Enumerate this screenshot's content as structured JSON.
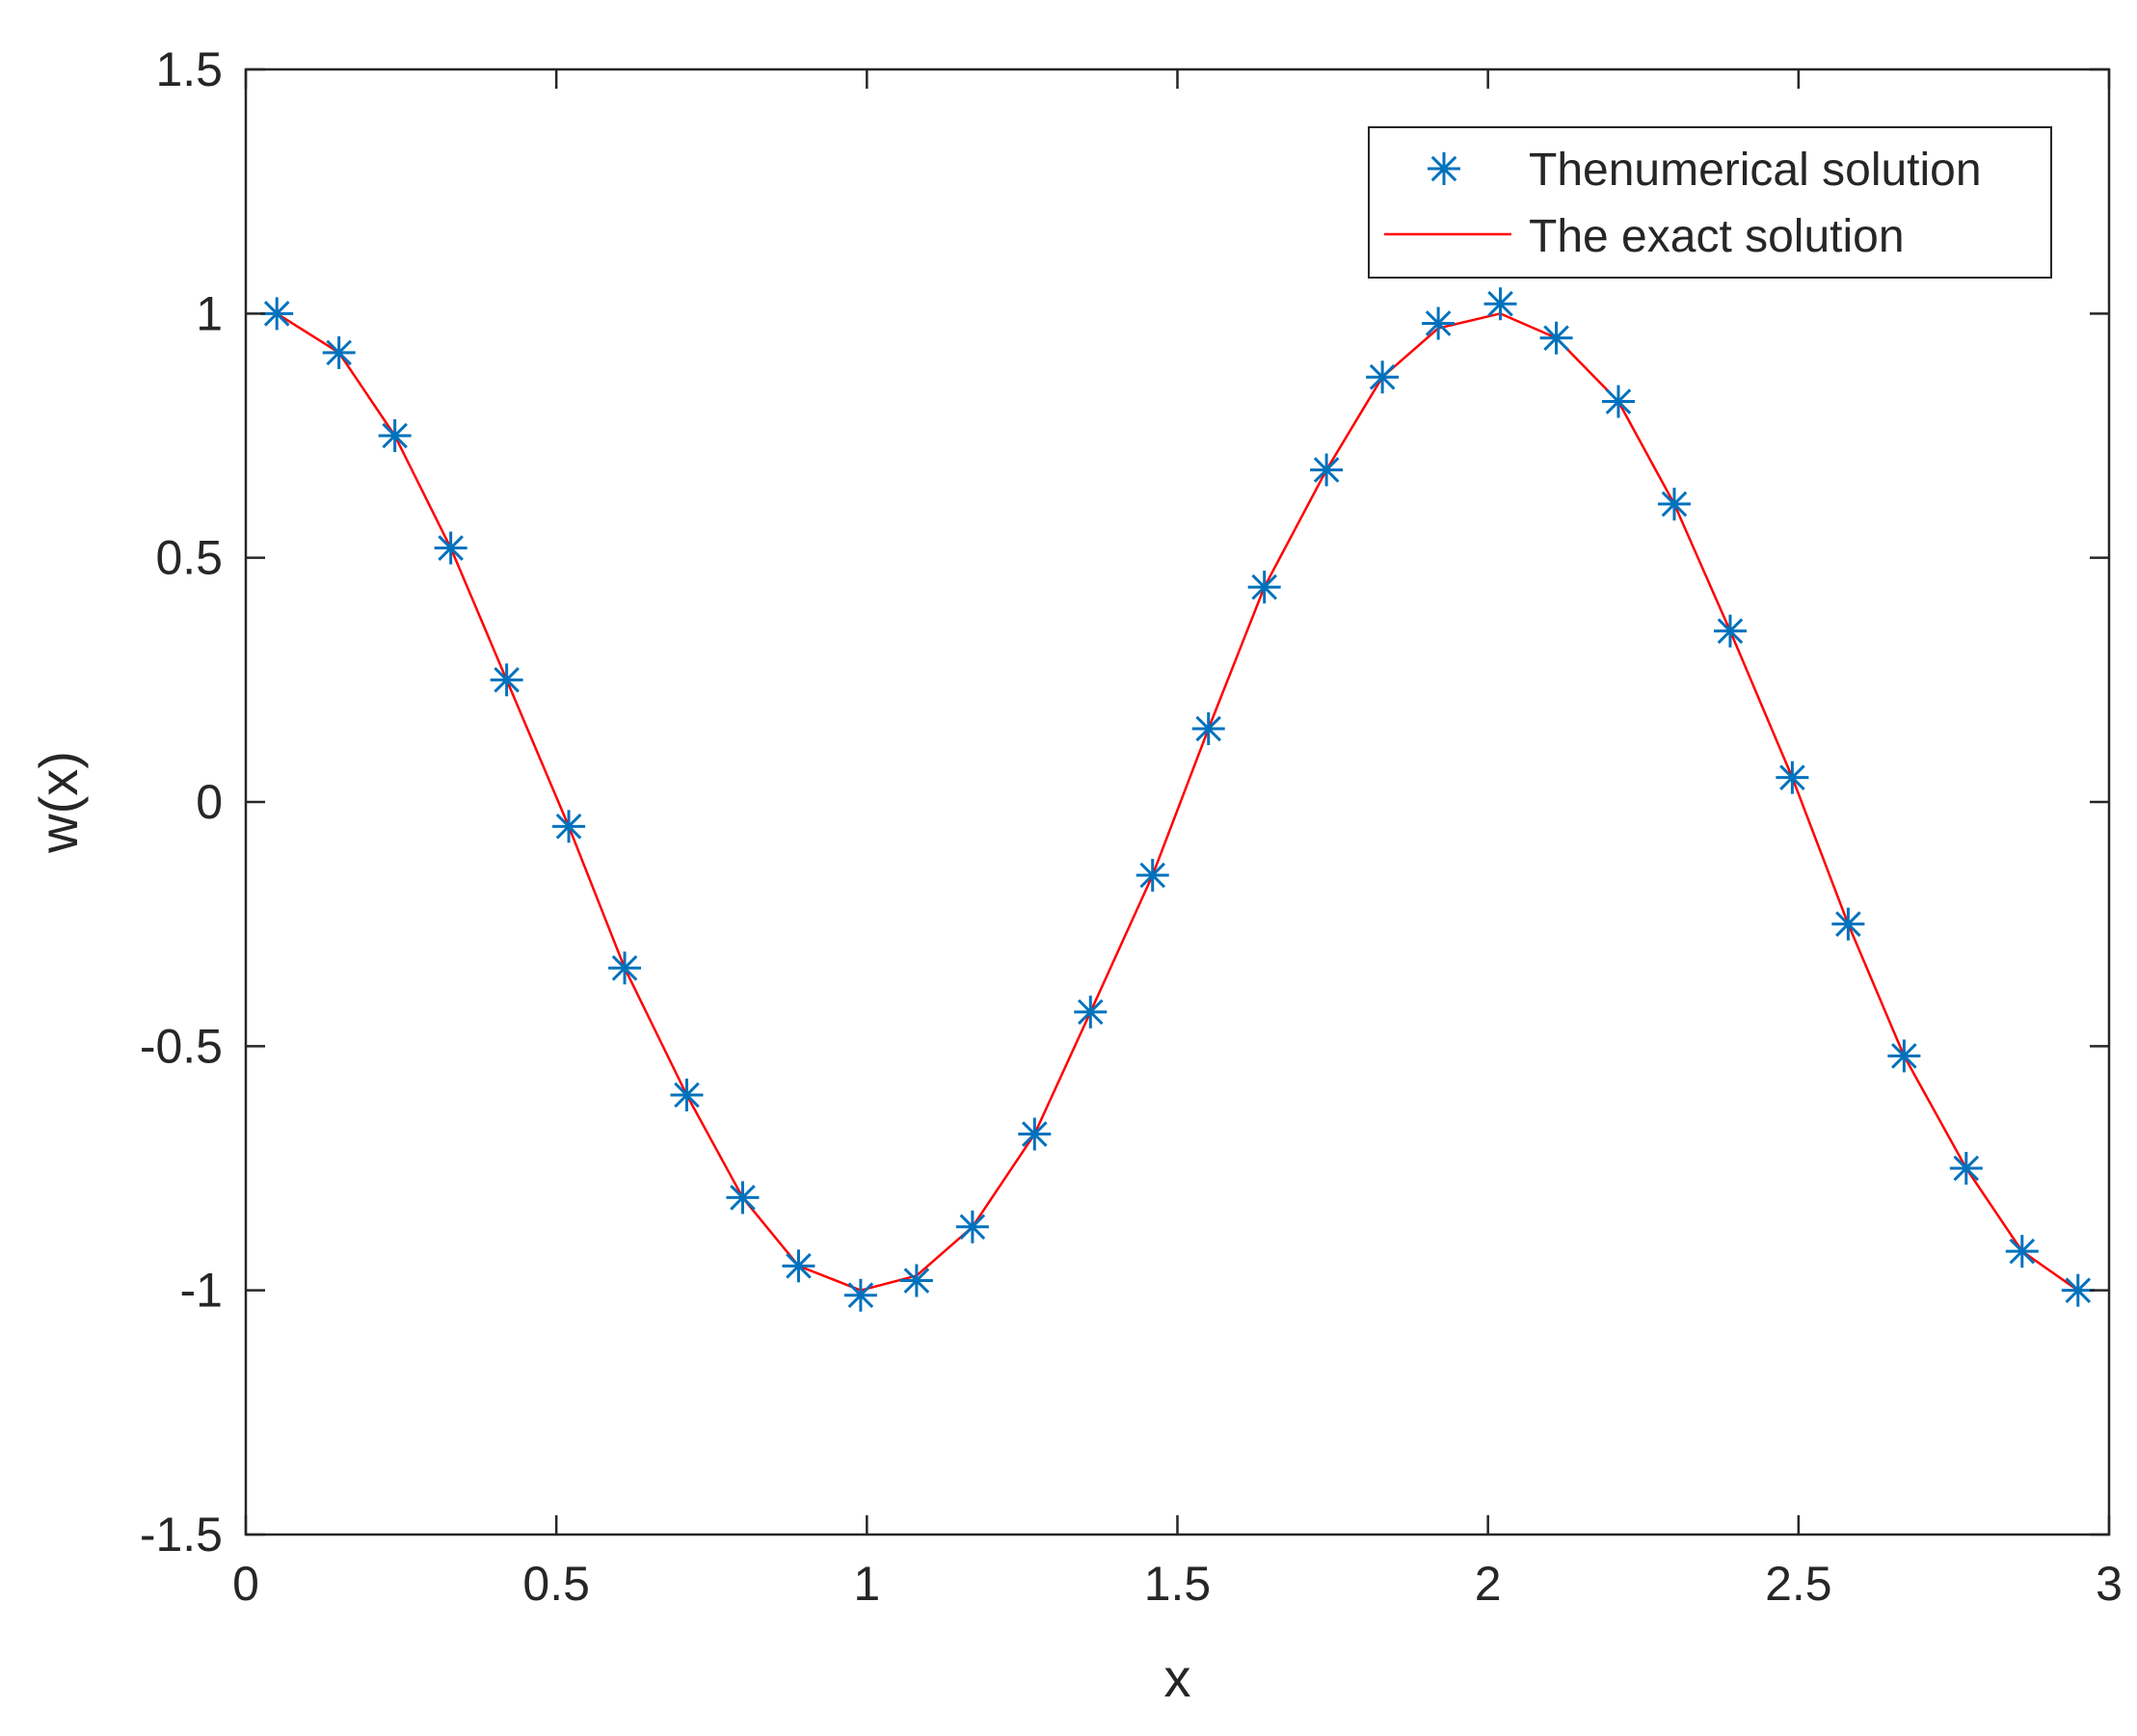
{
  "chart_data": {
    "type": "line",
    "title": "",
    "xlabel": "x",
    "ylabel": "w(x)",
    "xlim": [
      0,
      3
    ],
    "ylim": [
      -1.5,
      1.5
    ],
    "xticks": [
      0,
      0.5,
      1,
      1.5,
      2,
      2.5,
      3
    ],
    "xtick_labels": [
      "0",
      "0.5",
      "1",
      "1.5",
      "2",
      "2.5",
      "3"
    ],
    "yticks": [
      -1.5,
      -1,
      -0.5,
      0,
      0.5,
      1,
      1.5
    ],
    "ytick_labels": [
      "-1.5",
      "-1",
      "-0.5",
      "0",
      "0.5",
      "1",
      "1.5"
    ],
    "grid": false,
    "legend_position": "top-right",
    "series": [
      {
        "name": "Thenumerical solution",
        "style": "markers",
        "marker": "asterisk",
        "color": "#0072BD",
        "x": [
          0.05,
          0.15,
          0.24,
          0.33,
          0.42,
          0.52,
          0.61,
          0.71,
          0.8,
          0.89,
          0.99,
          1.08,
          1.17,
          1.27,
          1.36,
          1.46,
          1.55,
          1.64,
          1.74,
          1.83,
          1.92,
          2.02,
          2.11,
          2.21,
          2.3,
          2.39,
          2.49,
          2.58,
          2.67,
          2.77,
          2.86,
          2.95
        ],
        "y": [
          1.0,
          0.92,
          0.75,
          0.52,
          0.25,
          -0.05,
          -0.34,
          -0.6,
          -0.81,
          -0.95,
          -1.01,
          -0.98,
          -0.87,
          -0.68,
          -0.43,
          -0.15,
          0.15,
          0.44,
          0.68,
          0.87,
          0.98,
          1.02,
          0.95,
          0.82,
          0.61,
          0.35,
          0.05,
          -0.25,
          -0.52,
          -0.75,
          -0.92,
          -1.0
        ]
      },
      {
        "name": "The exact solution",
        "style": "line",
        "color": "#FF0000",
        "x": [
          0.05,
          0.15,
          0.24,
          0.33,
          0.42,
          0.52,
          0.61,
          0.71,
          0.8,
          0.89,
          0.99,
          1.08,
          1.17,
          1.27,
          1.36,
          1.46,
          1.55,
          1.64,
          1.74,
          1.83,
          1.92,
          2.02,
          2.11,
          2.21,
          2.3,
          2.39,
          2.49,
          2.58,
          2.67,
          2.77,
          2.86,
          2.95
        ],
        "y": [
          1.0,
          0.92,
          0.75,
          0.52,
          0.25,
          -0.05,
          -0.34,
          -0.6,
          -0.81,
          -0.95,
          -1.0,
          -0.97,
          -0.87,
          -0.68,
          -0.43,
          -0.15,
          0.15,
          0.44,
          0.68,
          0.87,
          0.97,
          1.0,
          0.95,
          0.82,
          0.61,
          0.35,
          0.05,
          -0.25,
          -0.52,
          -0.75,
          -0.92,
          -1.0
        ]
      }
    ]
  }
}
